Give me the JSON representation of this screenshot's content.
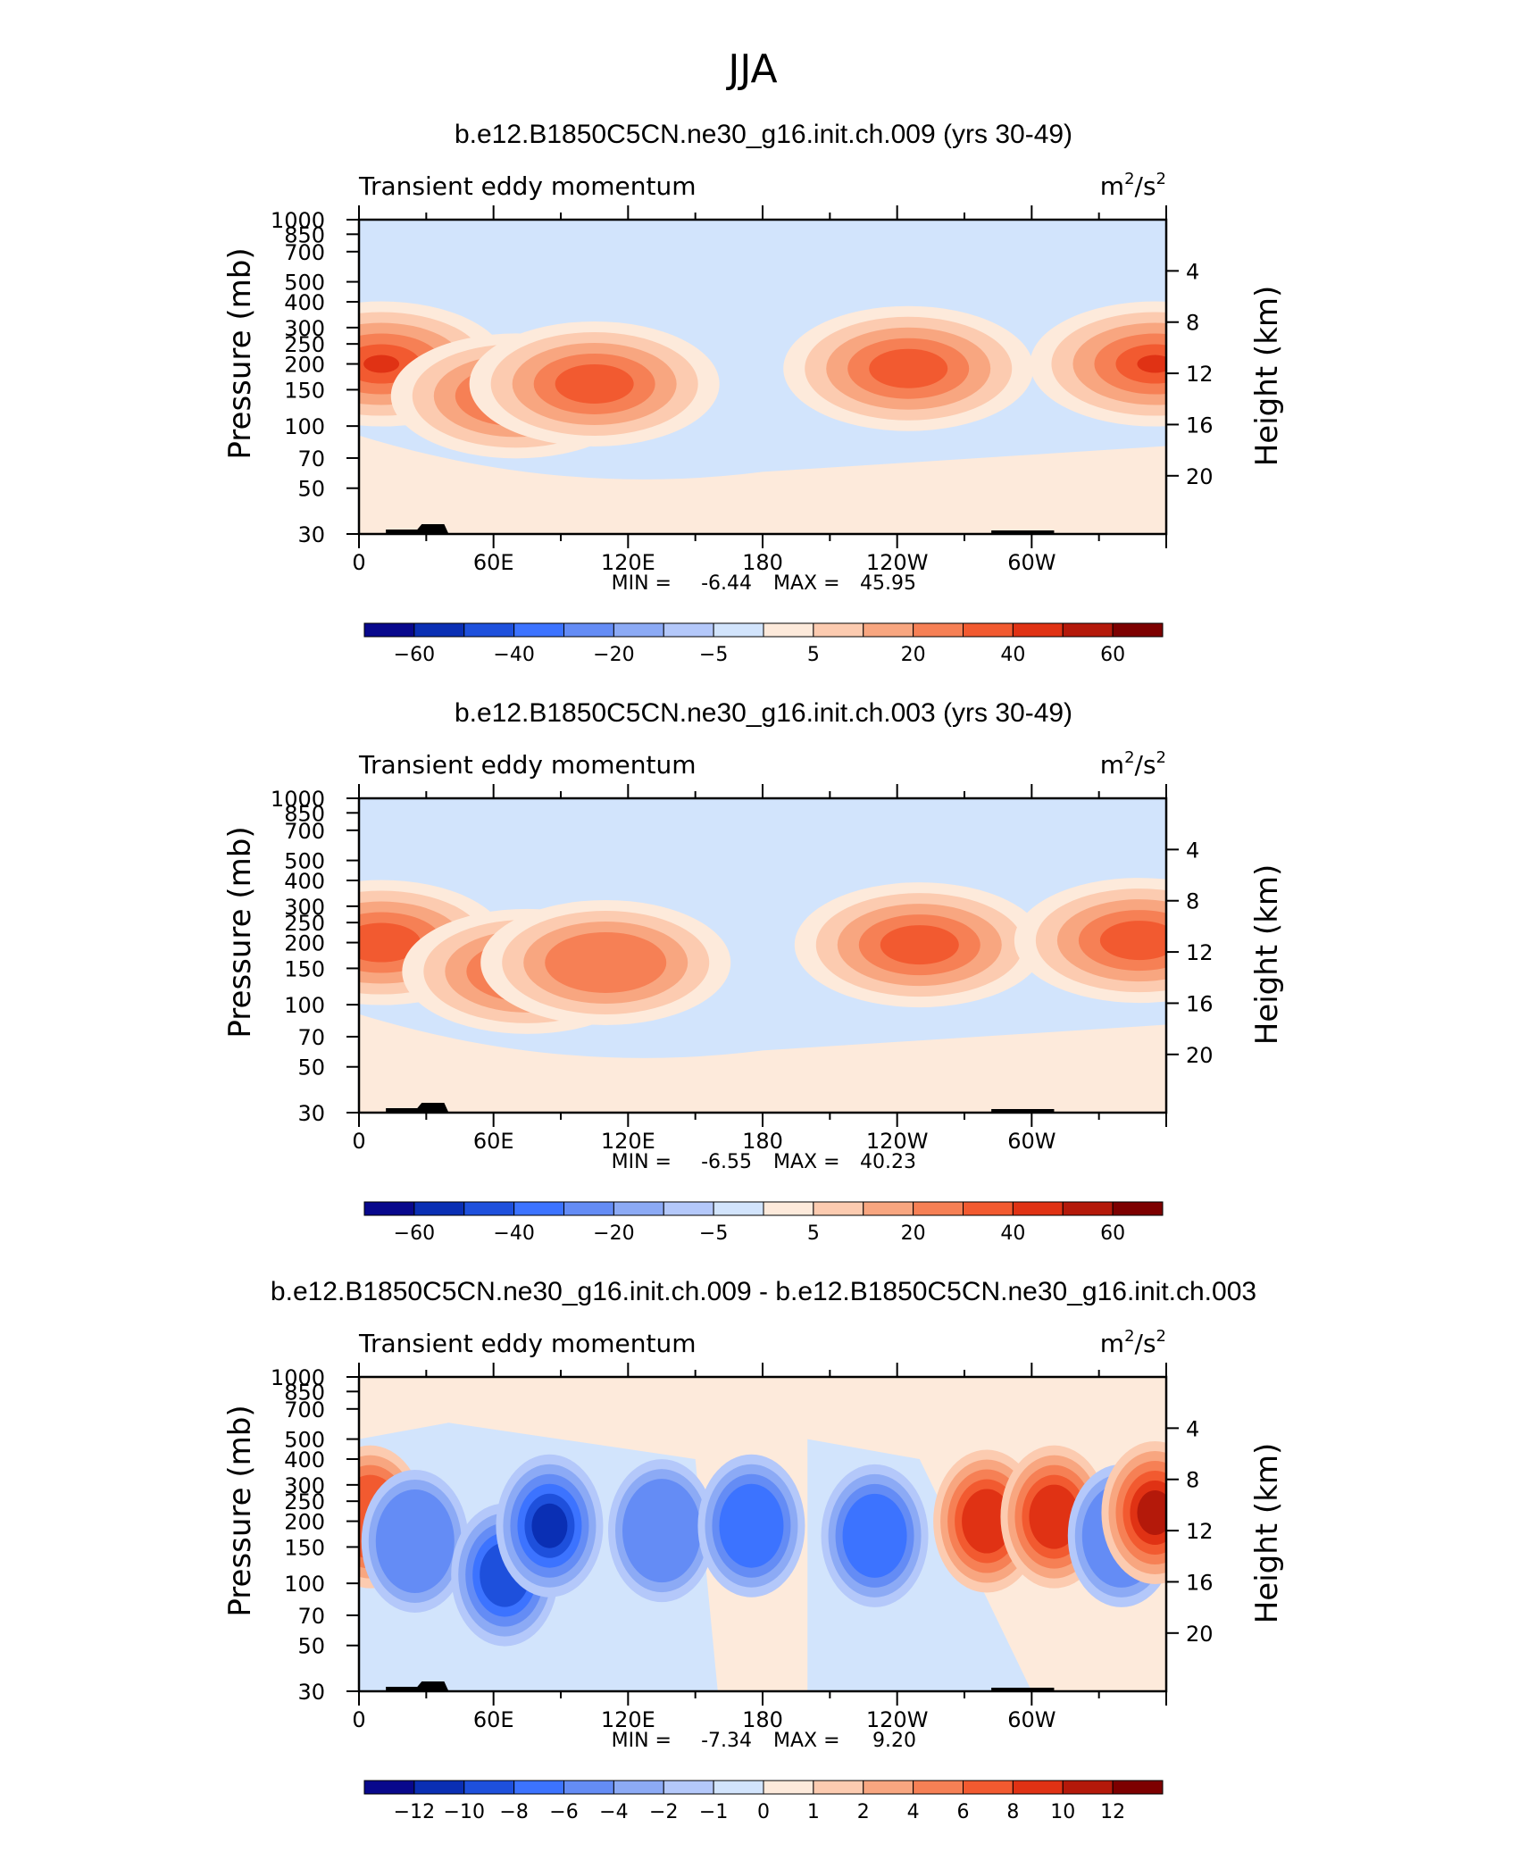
{
  "figure_title": "JJA",
  "colors": {
    "neg": [
      "#08088c",
      "#0a2fb4",
      "#1e50dc",
      "#3c73ff",
      "#648cf5",
      "#8caaf5",
      "#b4c8fa",
      "#d2e4fc"
    ],
    "pos": [
      "#fdeadb",
      "#fccbb0",
      "#f8a680",
      "#f68055",
      "#f25a30",
      "#e03214",
      "#b4190a",
      "#7d0000"
    ]
  },
  "chart_data": [
    {
      "type": "contour",
      "title": "b.e12.B1850C5CN.ne30_g16.init.ch.009 (yrs 30-49)",
      "left_label": "Transient eddy momentum",
      "units_base": "m",
      "units_exp1": "2",
      "units_mid": "/s",
      "units_exp2": "2",
      "ylabel": "Pressure (mb)",
      "ylabel_right": "Height (km)",
      "y_ticks": [
        "30",
        "50",
        "70",
        "100",
        "150",
        "200",
        "250",
        "300",
        "400",
        "500",
        "700",
        "850",
        "1000"
      ],
      "y_ticks_right": [
        "20",
        "16",
        "12",
        "8",
        "4"
      ],
      "x_ticks": [
        "0",
        "60E",
        "120E",
        "180",
        "120W",
        "60W"
      ],
      "min_label": "MIN =",
      "min": "-6.44",
      "max_label": "MAX =",
      "max": "45.95",
      "colorbar_labels": [
        "−60",
        "−40",
        "−20",
        "−5",
        "5",
        "20",
        "40",
        "60"
      ],
      "jets": [
        {
          "lon": 10,
          "p": 200,
          "level": 5
        },
        {
          "lon": 70,
          "p": 140,
          "level": 4
        },
        {
          "lon": 105,
          "p": 160,
          "level": 4
        },
        {
          "lon": 245,
          "p": 190,
          "level": 4
        },
        {
          "lon": 355,
          "p": 200,
          "level": 5
        }
      ]
    },
    {
      "type": "contour",
      "title": "b.e12.B1850C5CN.ne30_g16.init.ch.003 (yrs 30-49)",
      "left_label": "Transient eddy momentum",
      "units_base": "m",
      "units_exp1": "2",
      "units_mid": "/s",
      "units_exp2": "2",
      "ylabel": "Pressure (mb)",
      "ylabel_right": "Height (km)",
      "y_ticks": [
        "30",
        "50",
        "70",
        "100",
        "150",
        "200",
        "250",
        "300",
        "400",
        "500",
        "700",
        "850",
        "1000"
      ],
      "y_ticks_right": [
        "20",
        "16",
        "12",
        "8",
        "4"
      ],
      "x_ticks": [
        "0",
        "60E",
        "120E",
        "180",
        "120W",
        "60W"
      ],
      "min_label": "MIN =",
      "min": "-6.55",
      "max_label": "MAX =",
      "max": "40.23",
      "colorbar_labels": [
        "−60",
        "−40",
        "−20",
        "−5",
        "5",
        "20",
        "40",
        "60"
      ],
      "jets": [
        {
          "lon": 10,
          "p": 200,
          "level": 4
        },
        {
          "lon": 75,
          "p": 145,
          "level": 4
        },
        {
          "lon": 110,
          "p": 160,
          "level": 3
        },
        {
          "lon": 250,
          "p": 195,
          "level": 4
        },
        {
          "lon": 348,
          "p": 205,
          "level": 4
        }
      ]
    },
    {
      "type": "contour",
      "title": "b.e12.B1850C5CN.ne30_g16.init.ch.009 - b.e12.B1850C5CN.ne30_g16.init.ch.003",
      "left_label": "Transient eddy momentum",
      "units_base": "m",
      "units_exp1": "2",
      "units_mid": "/s",
      "units_exp2": "2",
      "ylabel": "Pressure (mb)",
      "ylabel_right": "Height (km)",
      "y_ticks": [
        "30",
        "50",
        "70",
        "100",
        "150",
        "200",
        "250",
        "300",
        "400",
        "500",
        "700",
        "850",
        "1000"
      ],
      "y_ticks_right": [
        "20",
        "16",
        "12",
        "8",
        "4"
      ],
      "x_ticks": [
        "0",
        "60E",
        "120E",
        "180",
        "120W",
        "60W"
      ],
      "min_label": "MIN =",
      "min": "-7.34",
      "max_label": "MAX =",
      "max": "9.20",
      "colorbar_labels": [
        "−12",
        "−10",
        "−8",
        "−6",
        "−4",
        "−2",
        "−1",
        "0",
        "1",
        "2",
        "4",
        "6",
        "8",
        "10",
        "12"
      ],
      "anomalies": [
        {
          "lon": 5,
          "p": 210,
          "v": 4
        },
        {
          "lon": 25,
          "p": 160,
          "v": -3
        },
        {
          "lon": 65,
          "p": 110,
          "v": -5
        },
        {
          "lon": 85,
          "p": 190,
          "v": -6
        },
        {
          "lon": 135,
          "p": 180,
          "v": -3
        },
        {
          "lon": 175,
          "p": 190,
          "v": -4
        },
        {
          "lon": 230,
          "p": 170,
          "v": -4
        },
        {
          "lon": 280,
          "p": 200,
          "v": 5
        },
        {
          "lon": 310,
          "p": 210,
          "v": 5
        },
        {
          "lon": 340,
          "p": 170,
          "v": -3
        },
        {
          "lon": 355,
          "p": 220,
          "v": 6
        }
      ]
    }
  ]
}
